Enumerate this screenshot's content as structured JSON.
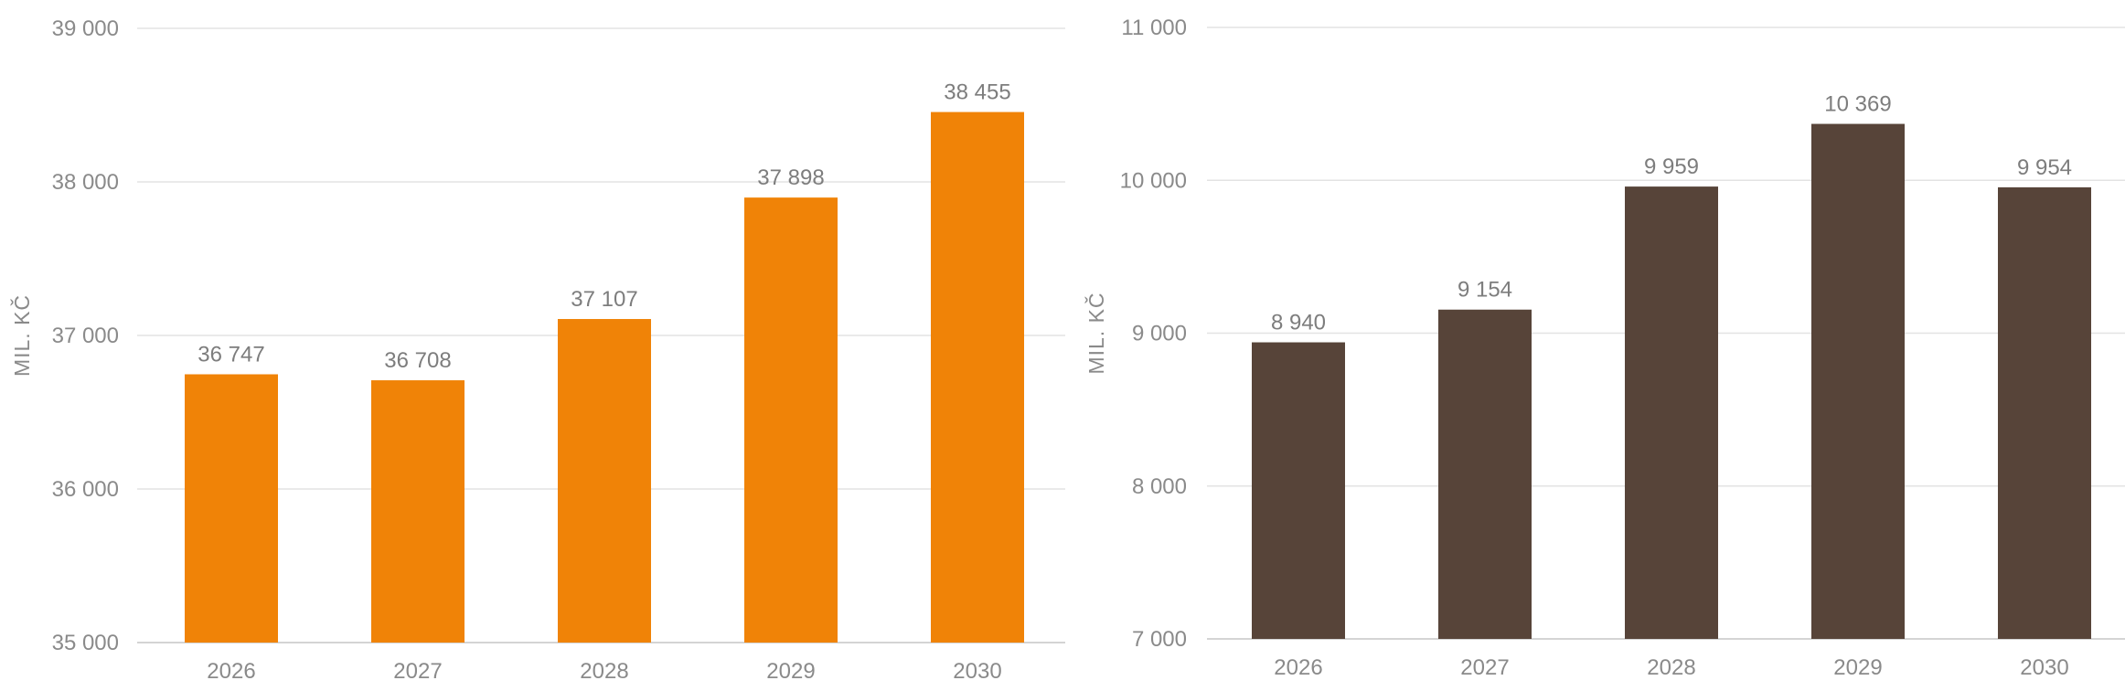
{
  "chart_data": [
    {
      "type": "bar",
      "categories": [
        "2026",
        "2027",
        "2028",
        "2029",
        "2030"
      ],
      "values": [
        36747,
        36708,
        37107,
        37898,
        38455
      ],
      "data_labels": [
        "36 747",
        "36 708",
        "37 107",
        "37 898",
        "38 455"
      ],
      "yticks": [
        "35 000",
        "36 000",
        "37 000",
        "38 000",
        "39 000"
      ],
      "ytick_values": [
        35000,
        36000,
        37000,
        38000,
        39000
      ],
      "ylim": [
        35000,
        39000
      ],
      "xlabel": "",
      "ylabel": "MIL. KČ",
      "grid": true,
      "legend": "none",
      "bar_color": "#f08307"
    },
    {
      "type": "bar",
      "categories": [
        "2026",
        "2027",
        "2028",
        "2029",
        "2030"
      ],
      "values": [
        8940,
        9154,
        9959,
        10369,
        9954
      ],
      "data_labels": [
        "8 940",
        "9 154",
        "9 959",
        "10 369",
        "9 954"
      ],
      "yticks": [
        "7 000",
        "8 000",
        "9 000",
        "10 000",
        "11 000"
      ],
      "ytick_values": [
        7000,
        8000,
        9000,
        10000,
        11000
      ],
      "ylim": [
        7000,
        11000
      ],
      "xlabel": "",
      "ylabel": "MIL. KČ",
      "grid": true,
      "legend": "none",
      "bar_color": "#574439"
    }
  ]
}
